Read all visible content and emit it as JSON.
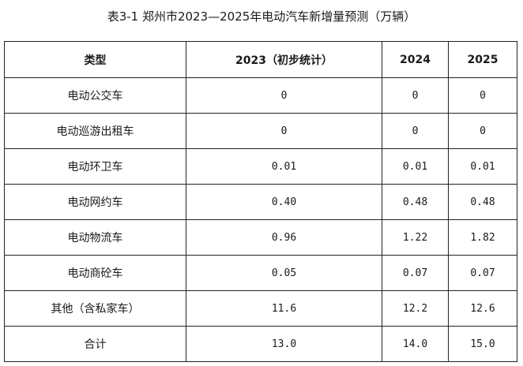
{
  "caption": "表3-1   郑州市2023—2025年电动汽车新增量预测（万辆）",
  "table": {
    "headers": [
      "类型",
      "2023（初步统计）",
      "2024",
      "2025"
    ],
    "rows": [
      [
        "电动公交车",
        "0",
        "0",
        "0"
      ],
      [
        "电动巡游出租车",
        "0",
        "0",
        "0"
      ],
      [
        "电动环卫车",
        "0.01",
        "0.01",
        "0.01"
      ],
      [
        "电动网约车",
        "0.40",
        "0.48",
        "0.48"
      ],
      [
        "电动物流车",
        "0.96",
        "1.22",
        "1.82"
      ],
      [
        "电动商砼车",
        "0.05",
        "0.07",
        "0.07"
      ],
      [
        "其他（含私家车）",
        "11.6",
        "12.2",
        "12.6"
      ],
      [
        "合计",
        "13.0",
        "14.0",
        "15.0"
      ]
    ]
  }
}
